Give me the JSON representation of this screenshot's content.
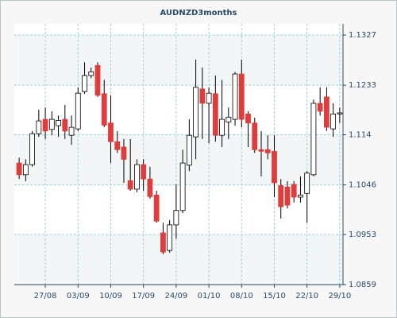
{
  "chart_data": {
    "type": "candlestick",
    "title": "AUDNZD3months",
    "categories": [
      null,
      null,
      null,
      null,
      "27/08",
      null,
      null,
      null,
      null,
      "03/09",
      null,
      null,
      null,
      null,
      "10/09",
      null,
      null,
      null,
      null,
      "17/09",
      null,
      null,
      null,
      null,
      "24/09",
      null,
      null,
      null,
      null,
      "01/10",
      null,
      null,
      null,
      null,
      "08/10",
      null,
      null,
      null,
      null,
      "15/10",
      null,
      null,
      null,
      null,
      "22/10",
      null,
      null,
      null,
      null,
      "29/10"
    ],
    "open": [
      1.1087,
      1.1065,
      1.1084,
      1.1142,
      1.1169,
      1.115,
      1.1157,
      1.1169,
      1.1139,
      1.1151,
      1.1221,
      1.1251,
      1.127,
      1.1217,
      1.1162,
      1.1127,
      1.1117,
      1.1054,
      1.1038,
      1.1084,
      1.1057,
      1.1027,
      1.0956,
      1.0923,
      1.0971,
      1.0998,
      1.1083,
      1.1136,
      1.1226,
      1.1199,
      1.1217,
      1.1139,
      1.1164,
      1.1169,
      1.1254,
      1.1179,
      1.1162,
      1.1112,
      1.1112,
      1.1109,
      1.1045,
      1.1042,
      1.1047,
      1.1023,
      1.103,
      1.1065,
      1.1199,
      1.1211,
      1.1151,
      1.1179
    ],
    "high": [
      1.1097,
      1.1094,
      1.1147,
      1.1187,
      1.1191,
      1.1184,
      1.1176,
      1.1196,
      1.1176,
      1.1229,
      1.1276,
      1.1266,
      1.1276,
      1.1243,
      1.1214,
      1.1147,
      1.1132,
      1.1132,
      1.1094,
      1.1094,
      1.108,
      1.1035,
      1.0975,
      1.098,
      1.1047,
      1.1112,
      1.1169,
      1.1281,
      1.1266,
      1.1229,
      1.1251,
      1.1243,
      1.1191,
      1.1258,
      1.1281,
      1.1184,
      1.1172,
      1.1147,
      1.1139,
      1.1139,
      1.1057,
      1.1053,
      1.1053,
      1.1062,
      1.1072,
      1.1206,
      1.1229,
      1.1229,
      1.1199,
      1.1191
    ],
    "low": [
      1.1057,
      1.1053,
      1.108,
      1.1136,
      1.1132,
      1.1139,
      1.1136,
      1.1132,
      1.1121,
      1.1147,
      1.1217,
      1.1246,
      1.1211,
      1.1154,
      1.1087,
      1.1106,
      1.105,
      1.1035,
      1.1032,
      1.1035,
      1.102,
      1.0975,
      1.0916,
      1.0919,
      1.0945,
      1.0993,
      1.1072,
      1.1094,
      1.1132,
      1.1124,
      1.1127,
      1.1117,
      1.1132,
      1.1157,
      1.1154,
      1.1117,
      1.1106,
      1.1062,
      1.1094,
      1.1023,
      1.0983,
      1.1002,
      1.1013,
      1.1013,
      1.0975,
      1.1062,
      1.1176,
      1.1147,
      1.1136,
      1.1162
    ],
    "close": [
      1.1065,
      1.1084,
      1.1142,
      1.1166,
      1.1147,
      1.1169,
      1.1167,
      1.1147,
      1.1154,
      1.1218,
      1.1251,
      1.1258,
      1.1214,
      1.1158,
      1.1127,
      1.1112,
      1.1094,
      1.1038,
      1.1084,
      1.1057,
      1.1024,
      1.0978,
      1.092,
      1.0971,
      1.0998,
      1.1087,
      1.1139,
      1.1229,
      1.1199,
      1.1218,
      1.1139,
      1.1169,
      1.1173,
      1.1254,
      1.1169,
      1.1162,
      1.1112,
      1.1109,
      1.1106,
      1.105,
      1.1005,
      1.1008,
      1.1023,
      1.1027,
      1.1068,
      1.1199,
      1.1184,
      1.1154,
      1.1179,
      1.1181
    ],
    "up_color": "#ffffff",
    "down_color": "#e03c3c",
    "ylim": [
      1.0859,
      1.1348
    ],
    "yticks": [
      1.0859,
      1.0953,
      1.1046,
      1.114,
      1.1233,
      1.1327
    ],
    "grid": true
  }
}
